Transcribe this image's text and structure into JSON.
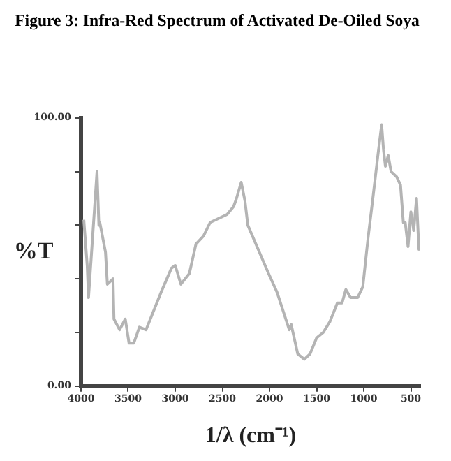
{
  "chart_data": {
    "type": "line",
    "title": "Figure 3: Infra-Red Spectrum of Activated De-Oiled Soya",
    "xlabel": "1/λ (cm⁻¹)",
    "ylabel": "%T",
    "x": [
      3970,
      3934,
      3920,
      3830,
      3810,
      3800,
      3740,
      3720,
      3660,
      3650,
      3590,
      3530,
      3490,
      3440,
      3380,
      3310,
      3150,
      3040,
      3000,
      2940,
      2850,
      2780,
      2700,
      2630,
      2450,
      2380,
      2350,
      2300,
      2260,
      2230,
      2120,
      2010,
      1920,
      1790,
      1770,
      1700,
      1630,
      1570,
      1500,
      1430,
      1360,
      1280,
      1230,
      1190,
      1140,
      1065,
      1010,
      955,
      900,
      850,
      810,
      790,
      770,
      740,
      710,
      650,
      610,
      580,
      560,
      530,
      500,
      470,
      440,
      415,
      400
    ],
    "series": [
      {
        "color": "#b4b4b4",
        "values": [
          62,
          45,
          33,
          80,
          60,
          61,
          50,
          38,
          40,
          25,
          21,
          25,
          16,
          16,
          22,
          21,
          35,
          44,
          45,
          38,
          42,
          53,
          56,
          61,
          64,
          67,
          70,
          76,
          69,
          60,
          51,
          42,
          35,
          21,
          23,
          12,
          10,
          12,
          18,
          20,
          24,
          31,
          31,
          36,
          33,
          33,
          37,
          55,
          71,
          86,
          97.5,
          88,
          82,
          86,
          80,
          78,
          75,
          61,
          61,
          52,
          65,
          58,
          70,
          51,
          54
        ]
      }
    ],
    "xlim": [
      4000,
      400
    ],
    "xticks": [
      4000,
      3500,
      3000,
      2500,
      2000,
      1500,
      1000,
      500
    ],
    "ylim": [
      0,
      100
    ],
    "yticks": [
      {
        "value": 0,
        "label": "0.00"
      },
      {
        "value": 20,
        "label": null
      },
      {
        "value": 40,
        "label": null
      },
      {
        "value": 60,
        "label": null
      },
      {
        "value": 80,
        "label": null
      },
      {
        "value": 100,
        "label": "100.00"
      }
    ],
    "grid": false,
    "legend": false,
    "marker": "none",
    "line_style": "solid"
  }
}
